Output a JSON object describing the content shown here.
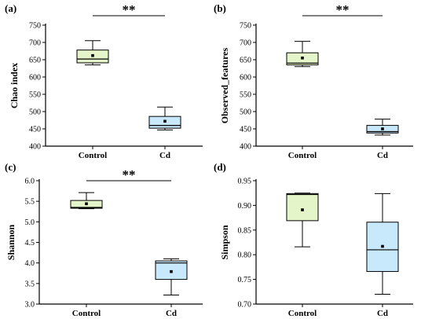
{
  "chart_data": [
    {
      "type": "box",
      "panel_label": "(a)",
      "ylabel": "Chao index",
      "categories": [
        "Control",
        "Cd"
      ],
      "ylim": [
        400,
        750
      ],
      "yticks": [
        400,
        450,
        500,
        550,
        600,
        650,
        700,
        750
      ],
      "significance": "**",
      "boxes": [
        {
          "category": "Control",
          "min": 635,
          "q1": 641,
          "median": 652,
          "q3": 678,
          "max": 705,
          "mean": 662,
          "color": "#e4f5c9"
        },
        {
          "category": "Cd",
          "min": 447,
          "q1": 452,
          "median": 460,
          "q3": 486,
          "max": 513,
          "mean": 472,
          "color": "#c8e8fb"
        }
      ]
    },
    {
      "type": "box",
      "panel_label": "(b)",
      "ylabel": "Observed_features",
      "categories": [
        "Control",
        "Cd"
      ],
      "ylim": [
        400,
        750
      ],
      "yticks": [
        400,
        450,
        500,
        550,
        600,
        650,
        700,
        750
      ],
      "significance": "**",
      "boxes": [
        {
          "category": "Control",
          "min": 630,
          "q1": 635,
          "median": 640,
          "q3": 670,
          "max": 703,
          "mean": 655,
          "color": "#e4f5c9"
        },
        {
          "category": "Cd",
          "min": 432,
          "q1": 438,
          "median": 442,
          "q3": 460,
          "max": 478,
          "mean": 450,
          "color": "#c8e8fb"
        }
      ]
    },
    {
      "type": "box",
      "panel_label": "(c)",
      "ylabel": "Shannon",
      "categories": [
        "Control",
        "Cd"
      ],
      "ylim": [
        3.0,
        6.0
      ],
      "yticks": [
        "3.0",
        "3.5",
        "4.0",
        "4.5",
        "5.0",
        "5.5",
        "6.0"
      ],
      "significance": "**",
      "boxes": [
        {
          "category": "Control",
          "min": 5.32,
          "q1": 5.33,
          "median": 5.35,
          "q3": 5.52,
          "max": 5.71,
          "mean": 5.44,
          "color": "#e4f5c9"
        },
        {
          "category": "Cd",
          "min": 3.22,
          "q1": 3.6,
          "median": 4.0,
          "q3": 4.05,
          "max": 4.1,
          "mean": 3.79,
          "color": "#c8e8fb"
        }
      ]
    },
    {
      "type": "box",
      "panel_label": "(d)",
      "ylabel": "Simpson",
      "categories": [
        "Control",
        "Cd"
      ],
      "ylim": [
        0.7,
        0.95
      ],
      "yticks": [
        "0.70",
        "0.75",
        "0.80",
        "0.85",
        "0.90",
        "0.95"
      ],
      "significance": "",
      "boxes": [
        {
          "category": "Control",
          "min": 0.816,
          "q1": 0.869,
          "median": 0.922,
          "q3": 0.924,
          "max": 0.925,
          "mean": 0.891,
          "color": "#e4f5c9"
        },
        {
          "category": "Cd",
          "min": 0.72,
          "q1": 0.766,
          "median": 0.81,
          "q3": 0.866,
          "max": 0.924,
          "mean": 0.817,
          "color": "#c8e8fb"
        }
      ]
    }
  ]
}
